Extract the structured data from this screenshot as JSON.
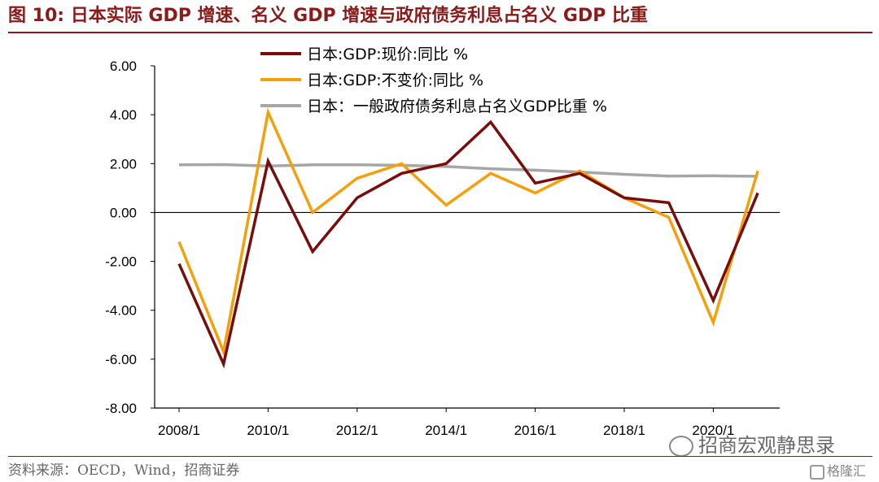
{
  "figure": {
    "title": "图 10:  日本实际 GDP 增速、名义 GDP 增速与政府债务利息占名义 GDP 比重",
    "source": "资料来源：OECD，Wind，招商证券",
    "watermark": "招商宏观静思录",
    "logo_text": "格隆汇",
    "title_color": "#8B1A1A"
  },
  "chart_data": {
    "type": "line",
    "title": "",
    "xlabel": "",
    "ylabel": "",
    "ylim": [
      -8,
      6
    ],
    "yticks": [
      "-8.00",
      "-6.00",
      "-4.00",
      "-2.00",
      "0.00",
      "2.00",
      "4.00",
      "6.00"
    ],
    "x": [
      "2008/1",
      "2009/1",
      "2010/1",
      "2011/1",
      "2012/1",
      "2013/1",
      "2014/1",
      "2015/1",
      "2016/1",
      "2017/1",
      "2018/1",
      "2019/1",
      "2020/1",
      "2021/1"
    ],
    "xtick_labels": [
      "2008/1",
      "2010/1",
      "2012/1",
      "2014/1",
      "2016/1",
      "2018/1",
      "2020/1"
    ],
    "legend_position": "top-center",
    "grid": false,
    "series": [
      {
        "name": "日本:GDP:现价:同比 %",
        "color": "#7B0C0C",
        "values": [
          -2.1,
          -6.2,
          2.1,
          -1.6,
          0.6,
          1.6,
          2.0,
          3.7,
          1.2,
          1.6,
          0.6,
          0.4,
          -3.6,
          0.8
        ]
      },
      {
        "name": "日本:GDP:不变价:同比 %",
        "color": "#F5A00A",
        "values": [
          -1.2,
          -5.7,
          4.1,
          0.0,
          1.4,
          2.0,
          0.3,
          1.6,
          0.8,
          1.7,
          0.6,
          -0.2,
          -4.5,
          1.7
        ]
      },
      {
        "name": "日本：一般政府债务利息占名义GDP比重 %",
        "color": "#A6A6A6",
        "values": [
          1.95,
          1.96,
          1.9,
          1.95,
          1.95,
          1.93,
          1.88,
          1.79,
          1.73,
          1.65,
          1.56,
          1.49,
          1.5,
          1.48
        ]
      }
    ]
  }
}
